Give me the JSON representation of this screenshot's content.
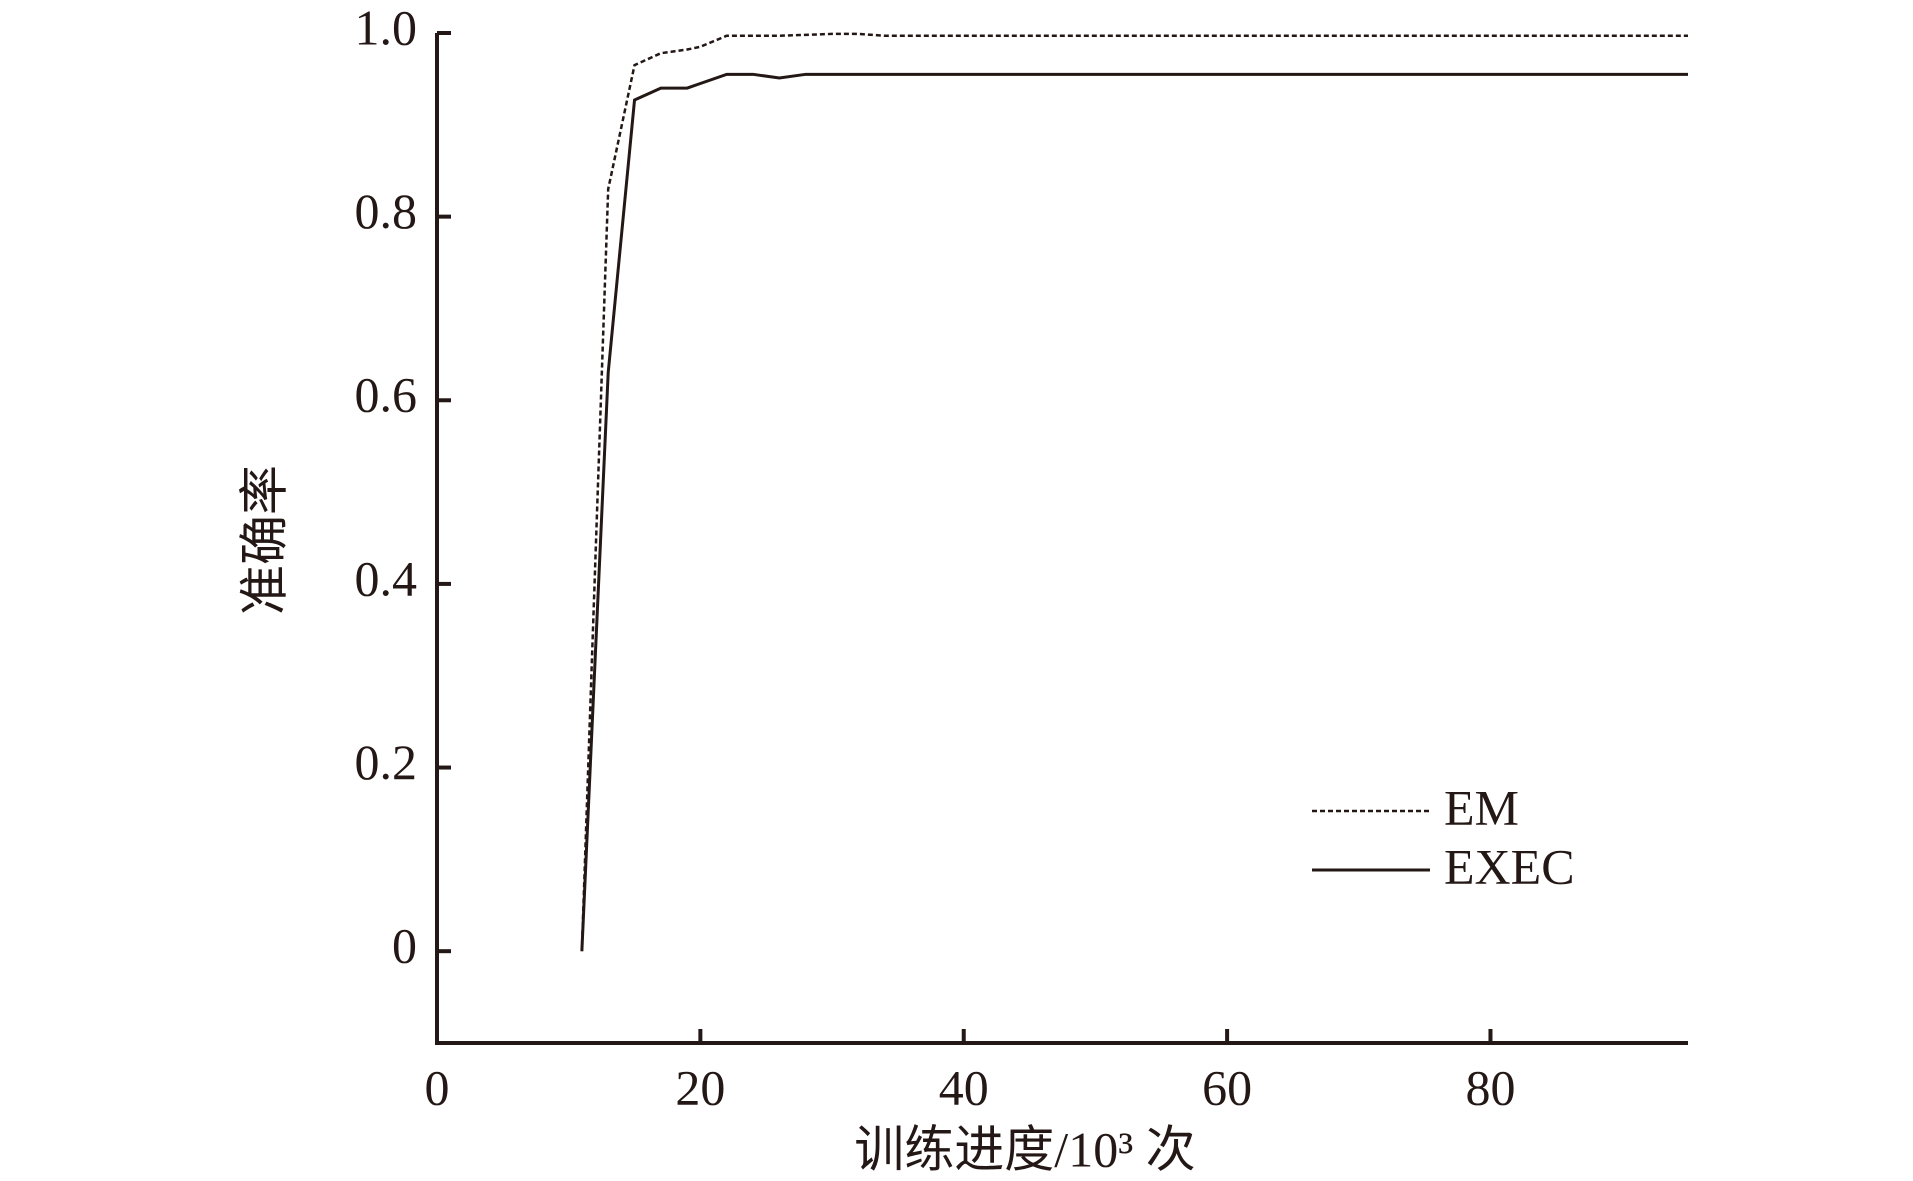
{
  "chart_data": {
    "type": "line",
    "x_label": "训练进度/10³ 次",
    "y_label": "准确率",
    "x": [
      11,
      13,
      15,
      17,
      19,
      20,
      22,
      24,
      26,
      28,
      30,
      32,
      34,
      95
    ],
    "series": [
      {
        "name": "EM",
        "color": "#231815",
        "dash": true,
        "values": [
          0,
          0.83,
          0.965,
          0.978,
          0.982,
          0.985,
          0.997,
          0.997,
          0.997,
          0.998,
          0.999,
          0.999,
          0.997,
          0.997
        ]
      },
      {
        "name": "EXEC",
        "color": "#231815",
        "dash": false,
        "values": [
          0,
          0.63,
          0.927,
          0.94,
          0.94,
          0.945,
          0.955,
          0.955,
          0.951,
          0.955,
          0.955,
          0.955,
          0.955,
          0.955
        ]
      }
    ],
    "xlim": [
      0,
      95
    ],
    "xticks": [
      0,
      20,
      40,
      60,
      80
    ],
    "ylim": [
      -0.1,
      1
    ],
    "yticks": [
      0,
      0.2,
      0.4,
      0.6,
      {
        "value": 1,
        "label": "1.0"
      },
      0.8
    ],
    "legend": "lower right",
    "grid": false
  }
}
